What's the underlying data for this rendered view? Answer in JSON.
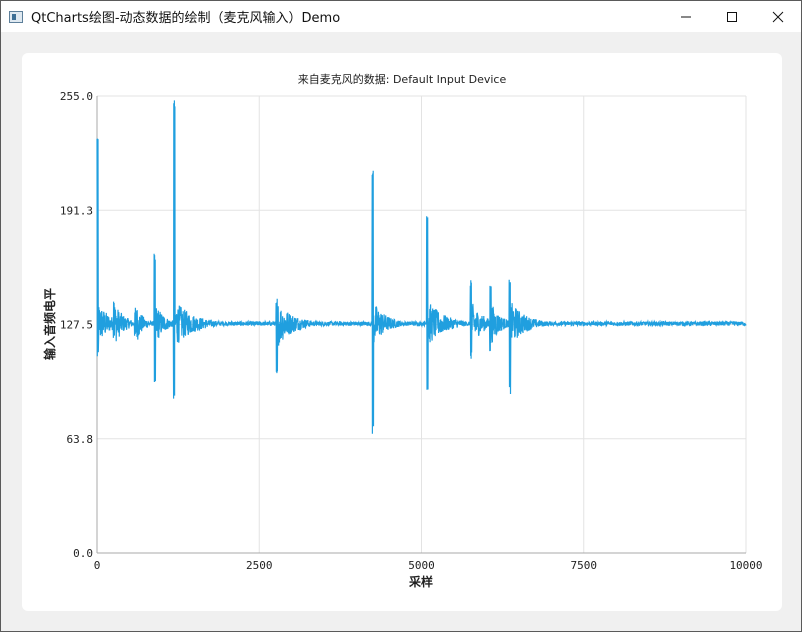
{
  "window": {
    "title": "QtCharts绘图-动态数据的绘制（麦克风输入）Demo",
    "minimize_symbol": "—",
    "maximize_symbol": "☐",
    "close_symbol": "✕",
    "icon": "app-icon"
  },
  "chart_data": {
    "type": "line",
    "title": "来自麦克风的数据: Default Input Device",
    "xlabel": "采样",
    "ylabel": "输入音频电平",
    "xlim": [
      0,
      10000
    ],
    "ylim": [
      0,
      255
    ],
    "x_ticks": [
      "0",
      "2500",
      "5000",
      "7500",
      "10000"
    ],
    "y_ticks": [
      "0.0",
      "63.8",
      "127.5",
      "191.3",
      "255.0"
    ],
    "grid": true,
    "line_color": "#209fdf",
    "baseline": 128,
    "bursts": [
      {
        "x": 0,
        "peak": 235,
        "trough": 108,
        "decay": 180
      },
      {
        "x": 250,
        "peak": 142,
        "trough": 120,
        "decay": 150
      },
      {
        "x": 580,
        "peak": 140,
        "trough": 118,
        "decay": 110
      },
      {
        "x": 880,
        "peak": 168,
        "trough": 90,
        "decay": 140
      },
      {
        "x": 1180,
        "peak": 255,
        "trough": 85,
        "decay": 300
      },
      {
        "x": 2760,
        "peak": 145,
        "trough": 96,
        "decay": 260
      },
      {
        "x": 4240,
        "peak": 215,
        "trough": 66,
        "decay": 200
      },
      {
        "x": 5080,
        "peak": 188,
        "trough": 90,
        "decay": 260
      },
      {
        "x": 5750,
        "peak": 155,
        "trough": 108,
        "decay": 180
      },
      {
        "x": 6050,
        "peak": 150,
        "trough": 112,
        "decay": 150
      },
      {
        "x": 6350,
        "peak": 155,
        "trough": 88,
        "decay": 240
      }
    ]
  }
}
